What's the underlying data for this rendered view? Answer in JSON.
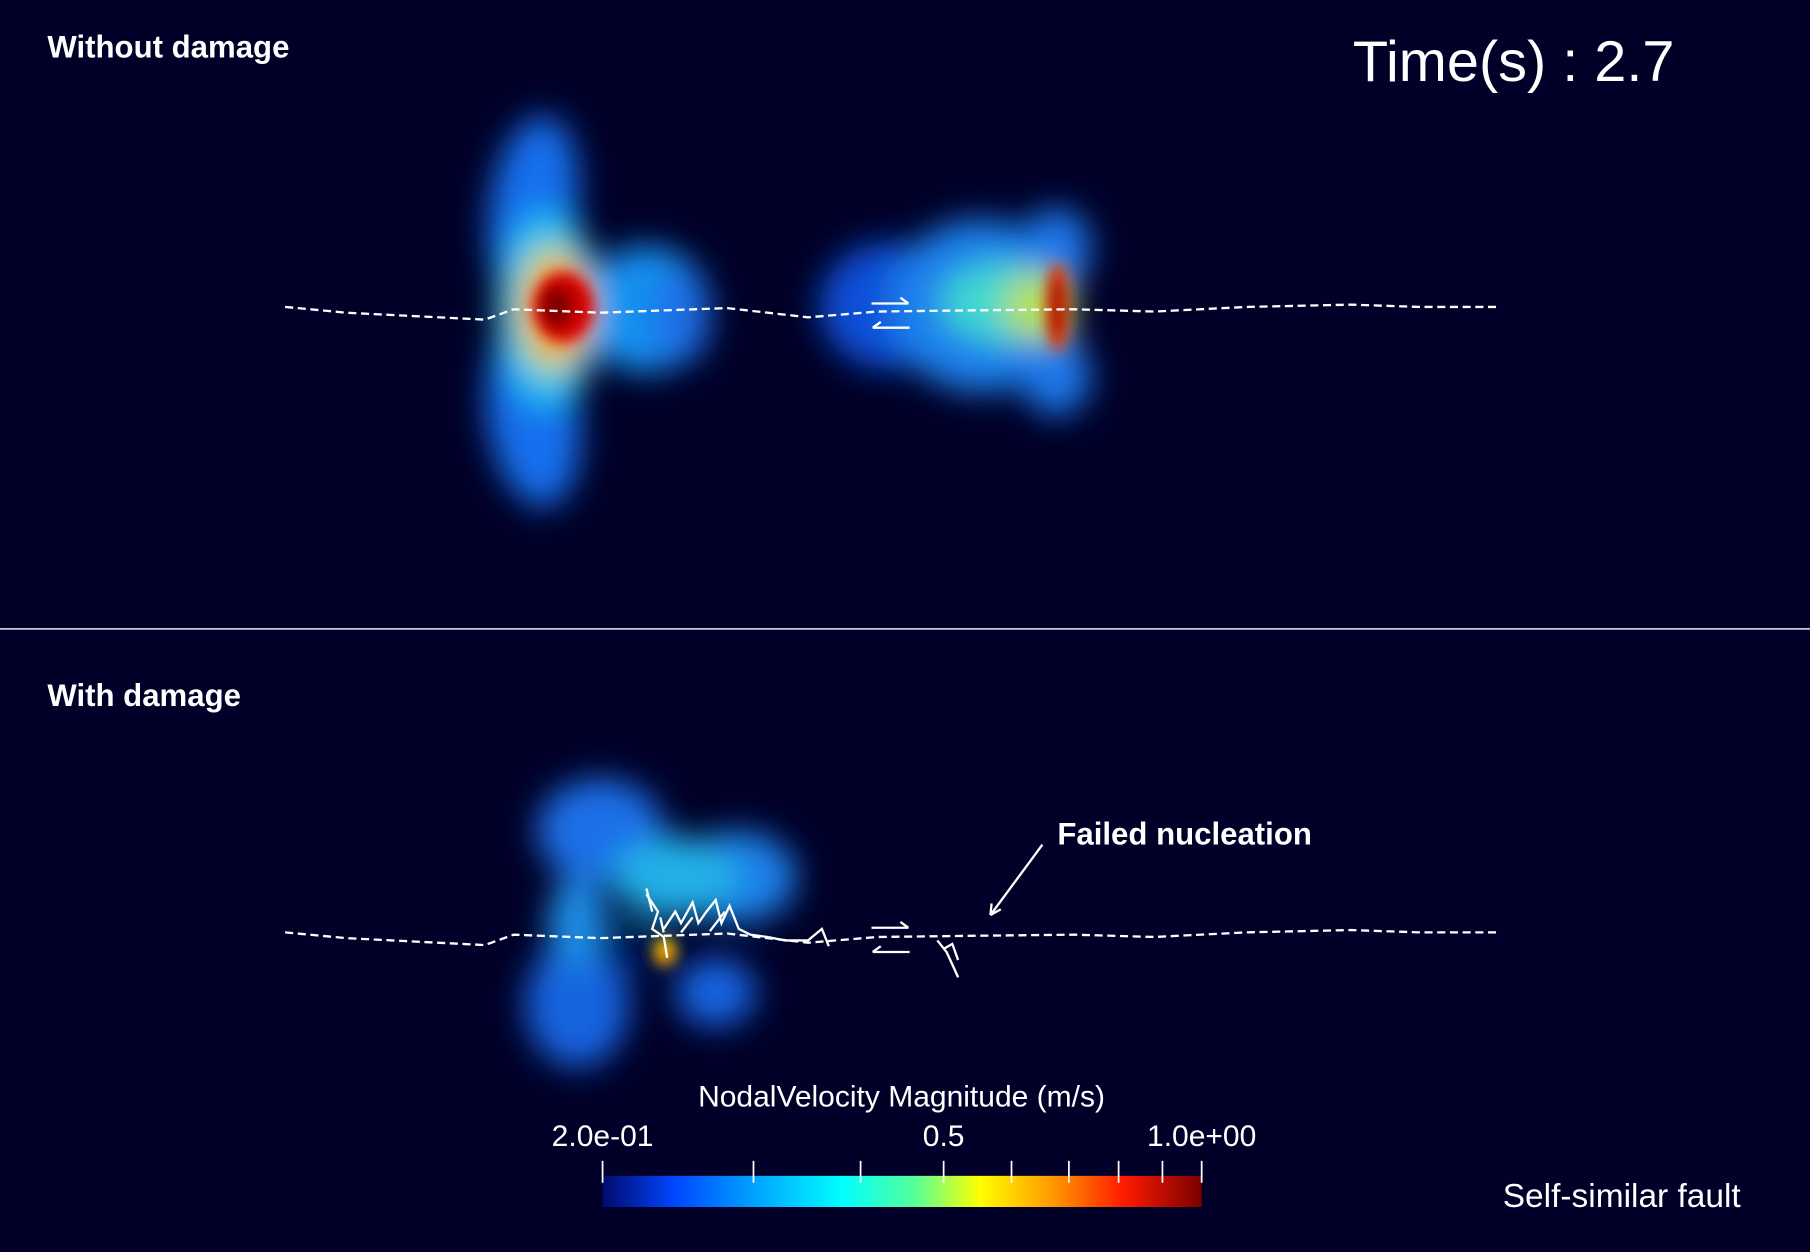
{
  "panels": [
    {
      "label": "Without damage"
    },
    {
      "label": "With damage"
    }
  ],
  "time_label": "Time(s) : 2.7",
  "annotation": "Failed nucleation",
  "footer": "Self-similar fault",
  "colorbar": {
    "title": "NodalVelocity Magnitude (m/s)",
    "range": [
      0.2,
      1.0
    ],
    "scale": "log",
    "ticks": [
      {
        "value": 0.2,
        "label": "2.0e-01"
      },
      0.5,
      {
        "value": 1.0,
        "label": "1.0e+00"
      }
    ],
    "minor_ticks": [
      0.3,
      0.4,
      0.6,
      0.7,
      0.8,
      0.9
    ]
  }
}
